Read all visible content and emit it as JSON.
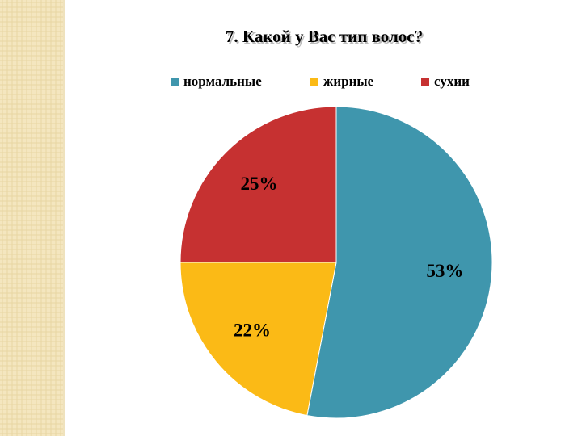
{
  "chart_data": {
    "type": "pie",
    "title": "7. Какой у Вас тип волос?",
    "categories": [
      "нормальные",
      "жирные",
      "сухии"
    ],
    "values": [
      53,
      22,
      25
    ],
    "value_labels": [
      "53%",
      "22%",
      "25%"
    ],
    "colors": [
      "#3f96ad",
      "#fbba16",
      "#c63131"
    ],
    "legend": "top"
  }
}
